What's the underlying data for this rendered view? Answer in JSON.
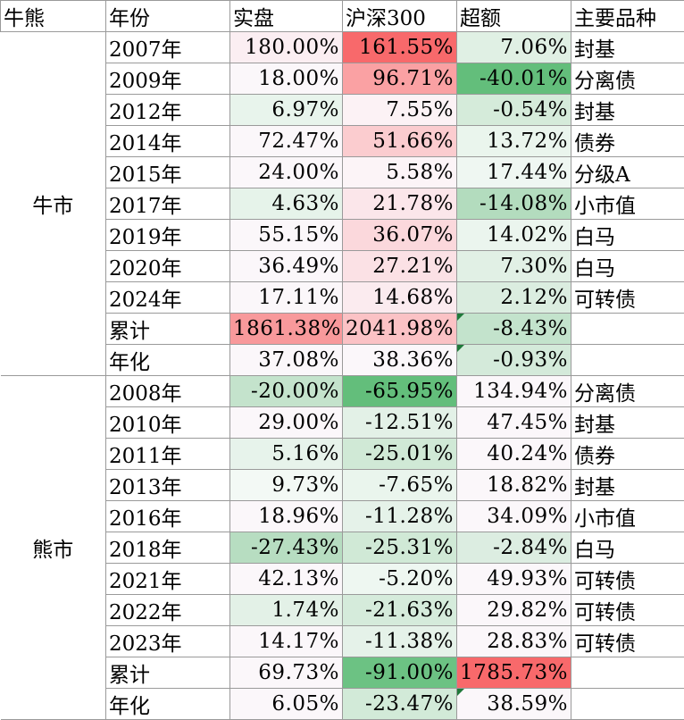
{
  "headers": [
    "牛熊",
    "年份",
    "实盘",
    "沪深300",
    "超额",
    "主要品种"
  ],
  "groups": [
    {
      "name": "牛市",
      "rows": [
        {
          "year": "2007年",
          "actual": "180.00%",
          "hs300": "161.55%",
          "excess": "7.06%",
          "product": "封基",
          "colors": [
            "#fbeef2",
            "#f8696b",
            "#e0f0e4"
          ]
        },
        {
          "year": "2009年",
          "actual": "18.00%",
          "hs300": "96.71%",
          "excess": "-40.01%",
          "product": "分离债",
          "colors": [
            "#fbf7fa",
            "#faa1a3",
            "#63be7b"
          ]
        },
        {
          "year": "2012年",
          "actual": "6.97%",
          "hs300": "7.55%",
          "excess": "-0.54%",
          "product": "封基",
          "colors": [
            "#e8f4ec",
            "#fcf2f5",
            "#d5ebda"
          ]
        },
        {
          "year": "2014年",
          "actual": "72.47%",
          "hs300": "51.66%",
          "excess": "13.72%",
          "product": "债券",
          "colors": [
            "#fbf7fa",
            "#fbcccf",
            "#eaf5ed"
          ]
        },
        {
          "year": "2015年",
          "actual": "24.00%",
          "hs300": "5.58%",
          "excess": "17.44%",
          "product": "分级A",
          "colors": [
            "#fbf7fa",
            "#fcf4f7",
            "#eff7f2"
          ]
        },
        {
          "year": "2017年",
          "actual": "4.63%",
          "hs300": "21.78%",
          "excess": "-14.08%",
          "product": "小市值",
          "colors": [
            "#e6f3ea",
            "#fbe6ea",
            "#b3dcbe"
          ]
        },
        {
          "year": "2019年",
          "actual": "55.15%",
          "hs300": "36.07%",
          "excess": "14.02%",
          "product": "白马",
          "colors": [
            "#fbf7fa",
            "#fbd8dc",
            "#ebf5ee"
          ]
        },
        {
          "year": "2020年",
          "actual": "36.49%",
          "hs300": "27.21%",
          "excess": "7.30%",
          "product": "白马",
          "colors": [
            "#fbf7fa",
            "#fbe1e5",
            "#e1f0e5"
          ]
        },
        {
          "year": "2024年",
          "actual": "17.11%",
          "hs300": "14.68%",
          "excess": "2.12%",
          "product": "可转债",
          "colors": [
            "#fbf7fa",
            "#fbebef",
            "#dbede0"
          ]
        },
        {
          "year": "累计",
          "actual": "1861.38%",
          "hs300": "2041.98%",
          "excess": "-8.43%",
          "product": "",
          "colors": [
            "#f8999b",
            "#fbc2c5",
            "#c3e3cc"
          ],
          "flag": true
        },
        {
          "year": "年化",
          "actual": "37.08%",
          "hs300": "38.36%",
          "excess": "-0.93%",
          "product": "",
          "colors": [
            "#fbf7fa",
            "#fbf7fa",
            "#d4eada"
          ],
          "flag": true
        }
      ]
    },
    {
      "name": "熊市",
      "rows": [
        {
          "year": "2008年",
          "actual": "-20.00%",
          "hs300": "-65.95%",
          "excess": "134.94%",
          "product": "分离债",
          "colors": [
            "#c4e3cc",
            "#63be7b",
            "#fbf7fa"
          ]
        },
        {
          "year": "2010年",
          "actual": "29.00%",
          "hs300": "-12.51%",
          "excess": "47.45%",
          "product": "封基",
          "colors": [
            "#fbf7fa",
            "#e3f1e7",
            "#fbf7fa"
          ]
        },
        {
          "year": "2011年",
          "actual": "5.16%",
          "hs300": "-25.01%",
          "excess": "40.24%",
          "product": "债券",
          "colors": [
            "#e7f3eb",
            "#d0e9d6",
            "#fbf7fa"
          ]
        },
        {
          "year": "2013年",
          "actual": "9.73%",
          "hs300": "-7.65%",
          "excess": "18.82%",
          "product": "封基",
          "colors": [
            "#f3f9f5",
            "#eaf5ed",
            "#fbf7fa"
          ]
        },
        {
          "year": "2016年",
          "actual": "18.96%",
          "hs300": "-11.28%",
          "excess": "34.09%",
          "product": "小市值",
          "colors": [
            "#fbf7fa",
            "#e5f2e9",
            "#fbf7fa"
          ]
        },
        {
          "year": "2018年",
          "actual": "-27.43%",
          "hs300": "-25.31%",
          "excess": "-2.84%",
          "product": "白马",
          "colors": [
            "#b7ddc1",
            "#d0e9d6",
            "#dcede1"
          ]
        },
        {
          "year": "2021年",
          "actual": "42.13%",
          "hs300": "-5.20%",
          "excess": "49.93%",
          "product": "可转债",
          "colors": [
            "#fbf7fa",
            "#eef7f1",
            "#fbf7fa"
          ]
        },
        {
          "year": "2022年",
          "actual": "1.74%",
          "hs300": "-21.63%",
          "excess": "29.82%",
          "product": "可转债",
          "colors": [
            "#e3f1e7",
            "#d5ebdb",
            "#fbf7fa"
          ]
        },
        {
          "year": "2023年",
          "actual": "14.17%",
          "hs300": "-11.38%",
          "excess": "28.83%",
          "product": "可转债",
          "colors": [
            "#fbf7fa",
            "#e5f2e9",
            "#fbf7fa"
          ]
        },
        {
          "year": "累计",
          "actual": "69.73%",
          "hs300": "-91.00%",
          "excess": "1785.73%",
          "product": "",
          "colors": [
            "#fbf7fa",
            "#6cc283",
            "#f8696b"
          ]
        },
        {
          "year": "年化",
          "actual": "6.05%",
          "hs300": "-23.47%",
          "excess": "38.59%",
          "product": "",
          "colors": [
            "#fbf7fa",
            "#d2eaD8",
            "#fbf7fa"
          ],
          "flag": true
        }
      ]
    }
  ]
}
